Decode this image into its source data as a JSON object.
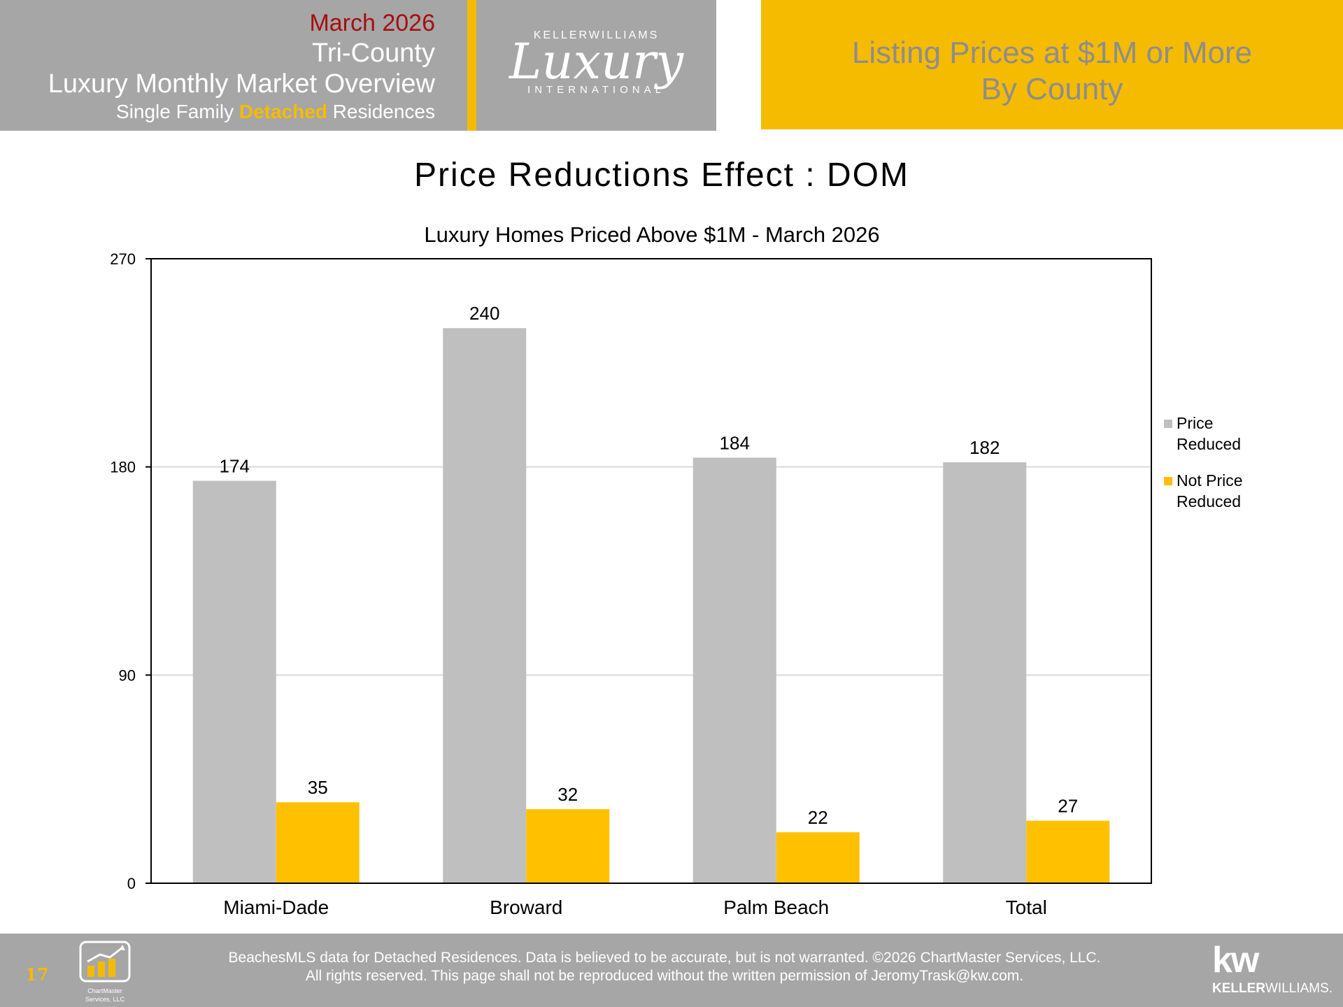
{
  "header": {
    "date": "March 2026",
    "region": "Tri-County",
    "report": "Luxury Monthly Market Overview",
    "subtitle_pre": "Single Family ",
    "subtitle_accent": "Detached",
    "subtitle_post": " Residences",
    "logo_brand": "KELLERWILLIAMS",
    "logo_script": "Luxury",
    "logo_tag": "INTERNATIONAL",
    "section_line1": "Listing Prices at $1M or More",
    "section_line2": "By County"
  },
  "chart_data": {
    "type": "bar",
    "title": "Price Reductions Effect : DOM",
    "subtitle": "Luxury Homes Priced Above $1M - March 2026",
    "categories": [
      "Miami-Dade",
      "Broward",
      "Palm Beach",
      "Total"
    ],
    "series": [
      {
        "name": "Price Reduced",
        "legend_lines": [
          "Price",
          "Reduced"
        ],
        "color": "#bfbfbf",
        "values": [
          174,
          240,
          184,
          182
        ]
      },
      {
        "name": "Not Price Reduced",
        "legend_lines": [
          "Not Price",
          "Reduced"
        ],
        "color": "#ffc000",
        "values": [
          35,
          32,
          22,
          27
        ]
      }
    ],
    "xlabel": "",
    "ylabel": "",
    "ylim": [
      0,
      270
    ],
    "yticks": [
      0,
      90,
      180,
      270
    ],
    "grid": true,
    "legend_position": "right"
  },
  "footer": {
    "page_number": "17",
    "cm_logo_line1": "ChartMaster",
    "cm_logo_line2": "Services, LLC",
    "disclaimer_line1": "BeachesMLS data for Detached Residences.  Data is believed to be accurate, but is not warranted.   ©2026  ChartMaster Services, LLC.",
    "disclaimer_line2": "All rights reserved. This page shall not be reproduced without the written permission of JeromyTrask@kw.com.",
    "kw_mark": "kw",
    "kw_name_bold": "KELLER",
    "kw_name_rest": "WILLIAMS."
  },
  "colors": {
    "header_gray": "#a6a6a6",
    "accent_gold": "#f5bb00",
    "date_red": "#a50f10",
    "bar_gray": "#bfbfbf",
    "bar_gold": "#ffc000"
  }
}
